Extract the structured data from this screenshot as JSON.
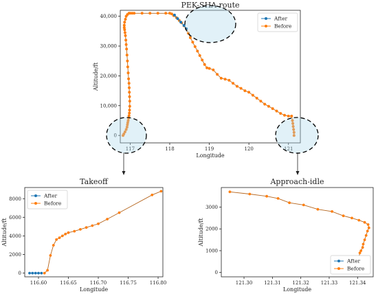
{
  "colors": {
    "after": "#1f77b4",
    "before": "#ff7f0e",
    "highlight": "#a9d6ea",
    "line_before": "#b5651d"
  },
  "chart_data": [
    {
      "id": "main",
      "type": "line",
      "title": "PEK-SHA route",
      "xlabel": "Longitude",
      "ylabel": "Altitude/ft",
      "xlim": [
        116.75,
        121.3
      ],
      "ylim": [
        -2500,
        42000
      ],
      "xticks": [
        117,
        118,
        119,
        120,
        121
      ],
      "xtick_labels": [
        "117",
        "118",
        "119",
        "120",
        "121"
      ],
      "yticks": [
        0,
        10000,
        20000,
        30000,
        40000
      ],
      "ytick_labels": [
        "0",
        "10,000",
        "20,000",
        "30,000",
        "40,000"
      ],
      "legend": [
        "After",
        "Before"
      ],
      "legend_position": "top-right",
      "grid": false,
      "series": [
        {
          "name": "Before",
          "x": [
            116.82,
            116.84,
            116.87,
            116.9,
            116.92,
            116.93,
            116.94,
            116.95,
            116.96,
            116.97,
            116.98,
            116.985,
            116.99,
            116.99,
            116.985,
            116.98,
            116.975,
            116.97,
            116.96,
            116.95,
            116.94,
            116.93,
            116.92,
            116.91,
            116.9,
            116.89,
            116.88,
            116.87,
            116.86,
            116.85,
            116.85,
            116.86,
            116.88,
            116.9,
            116.93,
            116.97,
            117.0,
            117.05,
            117.1,
            117.3,
            117.5,
            117.7,
            117.9,
            118.0,
            118.05,
            118.1,
            118.17,
            118.24,
            118.3,
            118.36,
            118.42,
            118.47,
            118.52,
            118.58,
            118.64,
            118.7,
            118.76,
            118.82,
            118.88,
            118.94,
            119.0,
            119.1,
            119.2,
            119.3,
            119.4,
            119.5,
            119.6,
            119.7,
            119.8,
            119.9,
            120.0,
            120.1,
            120.2,
            120.3,
            120.4,
            120.5,
            120.6,
            120.7,
            120.8,
            120.9,
            121.0,
            121.08,
            121.1,
            121.11,
            121.12,
            121.13,
            121.14,
            121.14
          ],
          "y": [
            0,
            500,
            1200,
            2000,
            2800,
            3600,
            4300,
            5000,
            5800,
            6600,
            7500,
            8500,
            9800,
            11500,
            13000,
            14500,
            16000,
            17500,
            19000,
            21000,
            23000,
            25000,
            27000,
            29000,
            30500,
            32000,
            33500,
            34500,
            35500,
            36200,
            37000,
            38000,
            39000,
            40000,
            40600,
            41000,
            41000,
            41000,
            41000,
            41000,
            41000,
            41000,
            41000,
            41000,
            40800,
            40200,
            39500,
            38600,
            37800,
            36800,
            35700,
            34300,
            32800,
            31300,
            29800,
            28300,
            26800,
            25300,
            23800,
            22700,
            22500,
            22000,
            20500,
            19200,
            18900,
            18500,
            17500,
            16500,
            15800,
            15000,
            14500,
            13500,
            12500,
            11500,
            10500,
            9800,
            9000,
            8200,
            7400,
            6800,
            6500,
            6500,
            5000,
            4000,
            3000,
            2000,
            1000,
            0
          ]
        },
        {
          "name": "After",
          "x": [
            118.12,
            118.2,
            118.28,
            118.36,
            118.42
          ],
          "y": [
            40400,
            39200,
            38000,
            36900,
            35800
          ]
        }
      ]
    },
    {
      "id": "takeoff",
      "type": "line",
      "title": "Takeoff",
      "xlabel": "Longitude",
      "ylabel": "Altitude/ft",
      "xlim": [
        116.577,
        116.808
      ],
      "ylim": [
        -400,
        9200
      ],
      "xticks": [
        116.6,
        116.65,
        116.7,
        116.75,
        116.8
      ],
      "xtick_labels": [
        "116.60",
        "116.65",
        "116.70",
        "116.75",
        "116.80"
      ],
      "yticks": [
        0,
        2000,
        4000,
        6000,
        8000
      ],
      "ytick_labels": [
        "0",
        "2000",
        "4000",
        "6000",
        "8000"
      ],
      "legend": [
        "After",
        "Before"
      ],
      "legend_position": "top-left",
      "grid": false,
      "series": [
        {
          "name": "Before",
          "x": [
            116.61,
            116.615,
            116.62,
            116.625,
            116.63,
            116.635,
            116.64,
            116.645,
            116.65,
            116.66,
            116.67,
            116.68,
            116.69,
            116.7,
            116.715,
            116.735,
            116.79,
            116.805
          ],
          "y": [
            0,
            300,
            1900,
            3000,
            3600,
            3800,
            4000,
            4200,
            4350,
            4500,
            4700,
            4900,
            5100,
            5300,
            5800,
            6500,
            8400,
            8800
          ]
        },
        {
          "name": "After",
          "x": [
            116.585,
            116.59,
            116.595,
            116.6,
            116.605
          ],
          "y": [
            0,
            0,
            0,
            0,
            0
          ]
        }
      ]
    },
    {
      "id": "approach",
      "type": "line",
      "title": "Approach-idle",
      "xlabel": "Longitude",
      "ylabel": "Altitude/ft",
      "xlim": [
        121.292,
        121.3455
      ],
      "ylim": [
        -200,
        3900
      ],
      "xticks": [
        121.3,
        121.31,
        121.32,
        121.33,
        121.34
      ],
      "xtick_labels": [
        "121.30",
        "121.31",
        "121.32",
        "121.33",
        "121.34"
      ],
      "yticks": [
        0,
        1000,
        2000,
        3000
      ],
      "ytick_labels": [
        "0",
        "1000",
        "2000",
        "3000"
      ],
      "legend": [
        "After",
        "Before"
      ],
      "legend_position": "bottom-right",
      "grid": false,
      "series": [
        {
          "name": "Before",
          "x": [
            121.295,
            121.302,
            121.308,
            121.312,
            121.316,
            121.321,
            121.326,
            121.331,
            121.335,
            121.338,
            121.3405,
            121.3425,
            121.3437,
            121.344,
            121.3435,
            121.343,
            121.3425,
            121.342,
            121.3418,
            121.3412,
            121.3408,
            121.3405,
            121.3402,
            121.3398,
            121.3392
          ],
          "y": [
            3700,
            3600,
            3500,
            3400,
            3200,
            3100,
            2900,
            2800,
            2600,
            2500,
            2400,
            2300,
            2200,
            2050,
            1900,
            1700,
            1500,
            1300,
            1150,
            1000,
            900,
            700,
            500,
            300,
            0
          ]
        },
        {
          "name": "After",
          "x": [
            121.334,
            121.3355,
            121.337,
            121.3385
          ],
          "y": [
            0,
            0,
            0,
            0
          ]
        }
      ]
    }
  ]
}
